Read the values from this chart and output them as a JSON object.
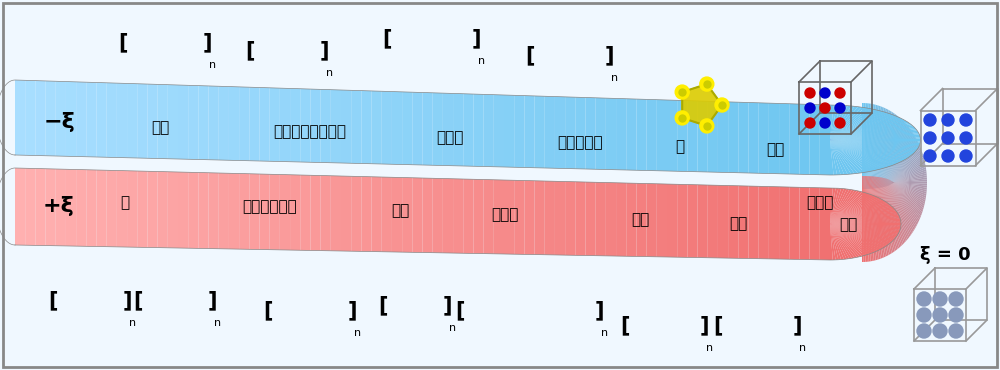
{
  "background_color": "#f0f8ff",
  "minus_xi_label": "−ξ",
  "plus_xi_label": "+ξ",
  "xi_zero_label": "ξ = 0",
  "blue_labels": [
    "비닐",
    "폴리디메틸실록산",
    "테플론",
    "폴리에틸렌",
    "황",
    "유리"
  ],
  "red_labels": [
    "털",
    "폴리프로필렌",
    "실크",
    "나일론",
    "고무",
    "종이",
    "실리콘",
    "금속"
  ],
  "blue_color": "#6EC6F0",
  "blue_light": "#A8DEFF",
  "red_color": "#F07070",
  "red_light": "#FFB0B0",
  "red_dark": "#D04040",
  "fold_color": "#C090D0"
}
